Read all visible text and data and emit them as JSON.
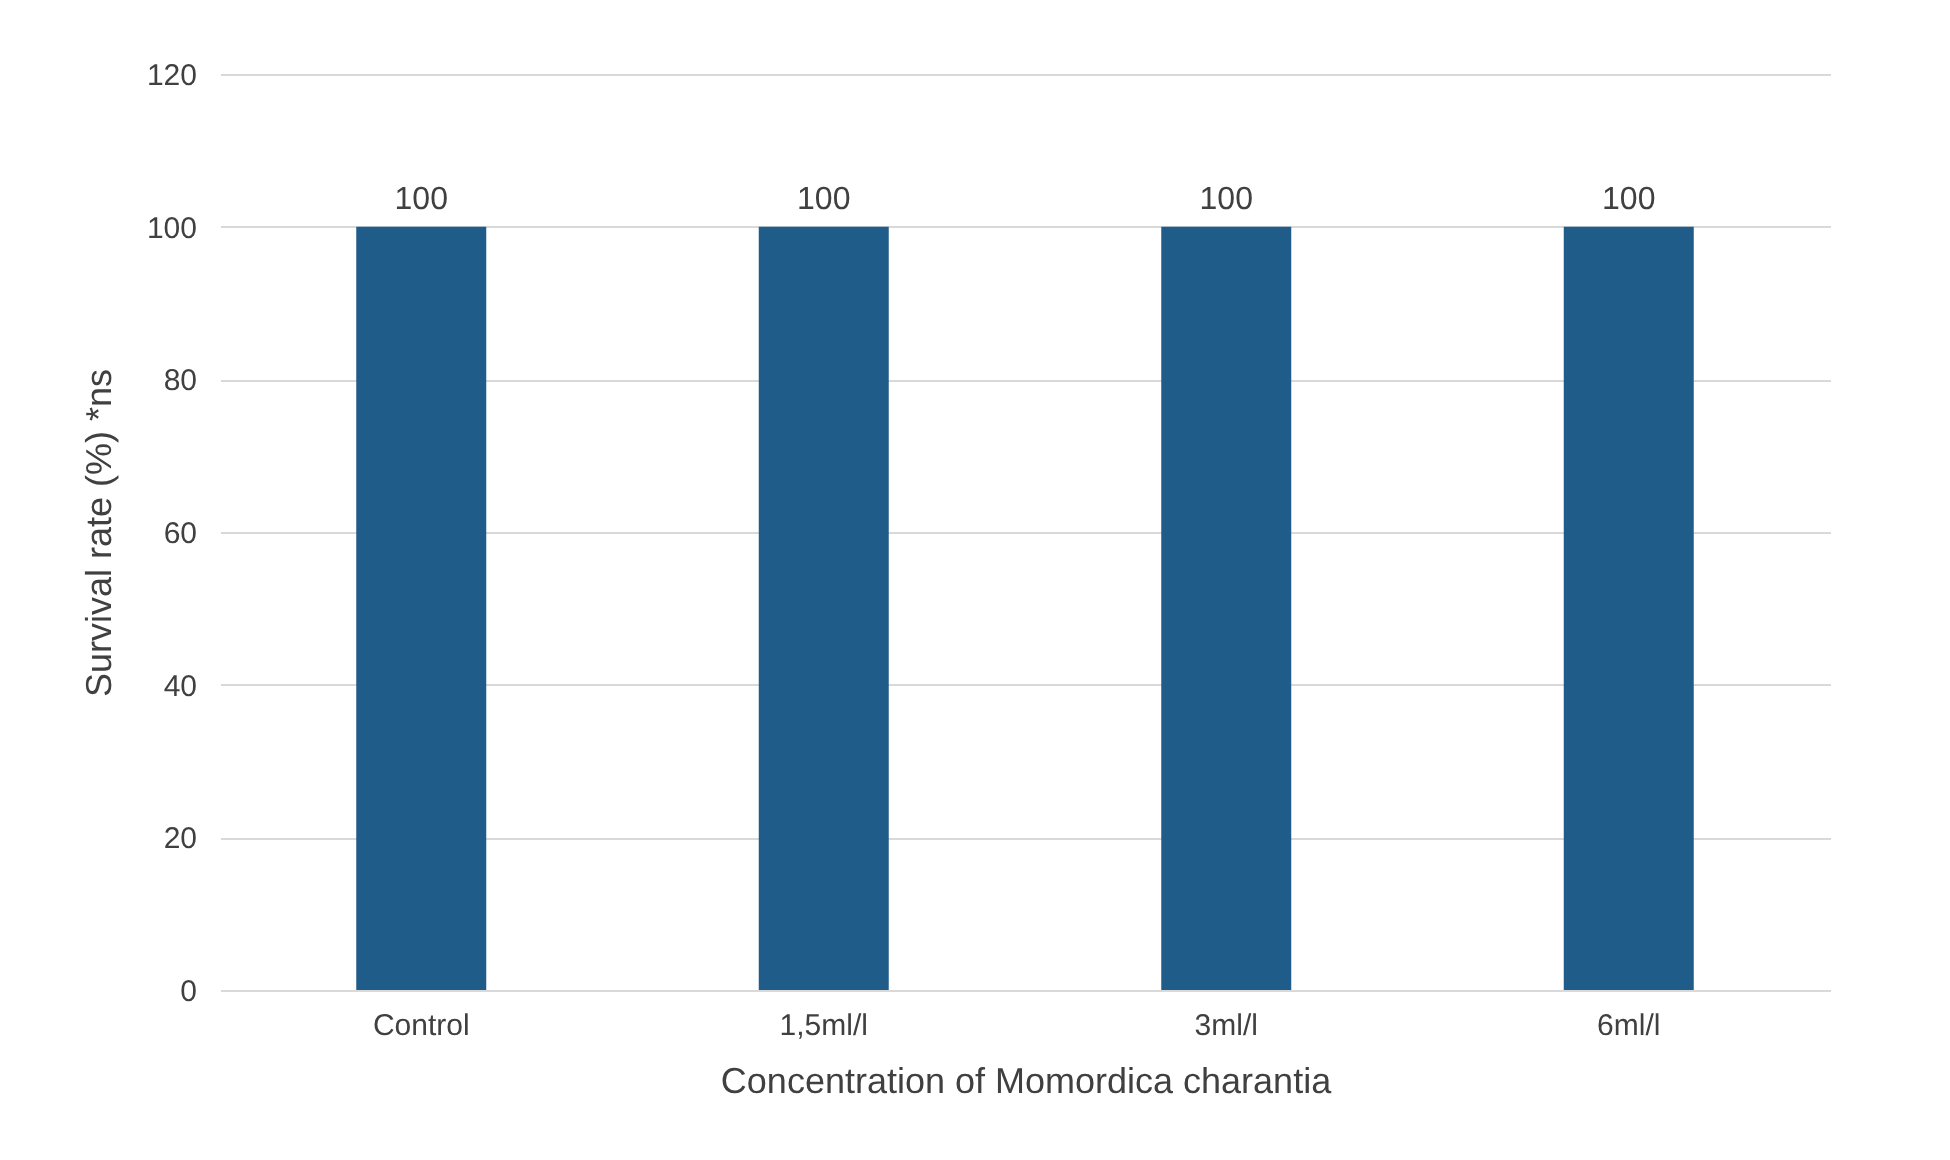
{
  "chart_data": {
    "type": "bar",
    "xlabel": "Concentration of Momordica charantia",
    "ylabel": "Survival rate (%) *ns",
    "categories": [
      "Control",
      "1,5ml/l",
      "3ml/l",
      "6ml/l"
    ],
    "values": [
      100,
      100,
      100,
      100
    ],
    "color": "#1f5c8a",
    "ylim": [
      0,
      120
    ],
    "yticks": [
      0,
      20,
      40,
      60,
      80,
      100,
      120
    ],
    "grid": "y",
    "data_labels": true
  }
}
